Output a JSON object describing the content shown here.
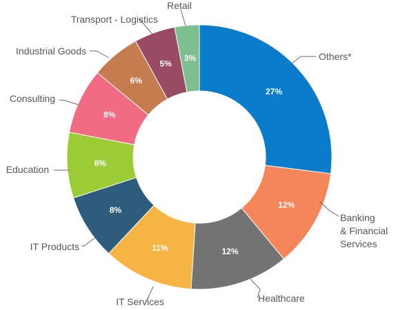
{
  "chart_data": {
    "type": "pie",
    "donut": true,
    "title": "",
    "slices": [
      {
        "label": "Others*",
        "value": 27,
        "display": "27%",
        "color": "#0a7ccb"
      },
      {
        "label": "Banking & Financial Services",
        "label_lines": [
          "Banking",
          "& Financial",
          "Services"
        ],
        "value": 12,
        "display": "12%",
        "color": "#f4865a"
      },
      {
        "label": "Healthcare",
        "value": 12,
        "display": "12%",
        "color": "#737373"
      },
      {
        "label": "IT Services",
        "value": 11,
        "display": "11%",
        "color": "#f6b443"
      },
      {
        "label": "IT Products",
        "value": 8,
        "display": "8%",
        "color": "#2f5b7c"
      },
      {
        "label": "Education",
        "value": 8,
        "display": "8%",
        "color": "#9ccc33"
      },
      {
        "label": "Consulting",
        "value": 8,
        "display": "8%",
        "color": "#f16b82"
      },
      {
        "label": "Industrial Goods",
        "value": 6,
        "display": "6%",
        "color": "#c57c4e"
      },
      {
        "label": "Transport - Logistics",
        "value": 5,
        "display": "5%",
        "color": "#994b63"
      },
      {
        "label": "Retail",
        "value": 3,
        "display": "3%",
        "color": "#7ebf91"
      }
    ]
  }
}
